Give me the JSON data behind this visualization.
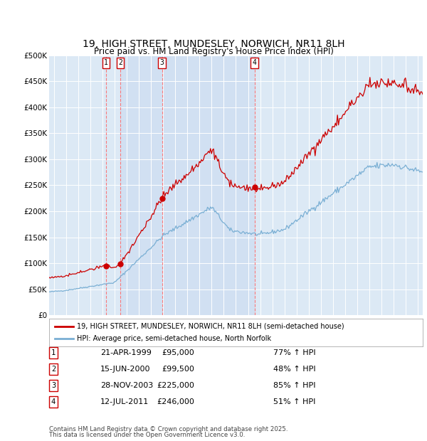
{
  "title": "19, HIGH STREET, MUNDESLEY, NORWICH, NR11 8LH",
  "subtitle": "Price paid vs. HM Land Registry's House Price Index (HPI)",
  "legend_line1": "19, HIGH STREET, MUNDESLEY, NORWICH, NR11 8LH (semi-detached house)",
  "legend_line2": "HPI: Average price, semi-detached house, North Norfolk",
  "footnote1": "Contains HM Land Registry data © Crown copyright and database right 2025.",
  "footnote2": "This data is licensed under the Open Government Licence v3.0.",
  "transactions": [
    {
      "num": 1,
      "date": "21-APR-1999",
      "price": 95000,
      "hpi_pct": "77% ↑ HPI",
      "x_year": 1999.3
    },
    {
      "num": 2,
      "date": "15-JUN-2000",
      "price": 99500,
      "hpi_pct": "48% ↑ HPI",
      "x_year": 2000.46
    },
    {
      "num": 3,
      "date": "28-NOV-2003",
      "price": 225000,
      "hpi_pct": "85% ↑ HPI",
      "x_year": 2003.91
    },
    {
      "num": 4,
      "date": "12-JUL-2011",
      "price": 246000,
      "hpi_pct": "51% ↑ HPI",
      "x_year": 2011.53
    }
  ],
  "table_rows": [
    [
      "1",
      "21-APR-1999",
      "£95,000",
      "77% ↑ HPI"
    ],
    [
      "2",
      "15-JUN-2000",
      "£99,500",
      "48% ↑ HPI"
    ],
    [
      "3",
      "28-NOV-2003",
      "£225,000",
      "85% ↑ HPI"
    ],
    [
      "4",
      "12-JUL-2011",
      "£246,000",
      "51% ↑ HPI"
    ]
  ],
  "ylim": [
    0,
    500000
  ],
  "ytick_vals": [
    0,
    50000,
    100000,
    150000,
    200000,
    250000,
    300000,
    350000,
    400000,
    450000,
    500000
  ],
  "ytick_labels": [
    "£0",
    "£50K",
    "£100K",
    "£150K",
    "£200K",
    "£250K",
    "£300K",
    "£350K",
    "£400K",
    "£450K",
    "£500K"
  ],
  "xlim": [
    1994.6,
    2025.4
  ],
  "bg_color": "#dce9f5",
  "red_color": "#cc0000",
  "blue_color": "#7aafd4",
  "shade_color": "#c8daf0",
  "grid_color": "#ffffff",
  "dashed_color": "#ff6666"
}
